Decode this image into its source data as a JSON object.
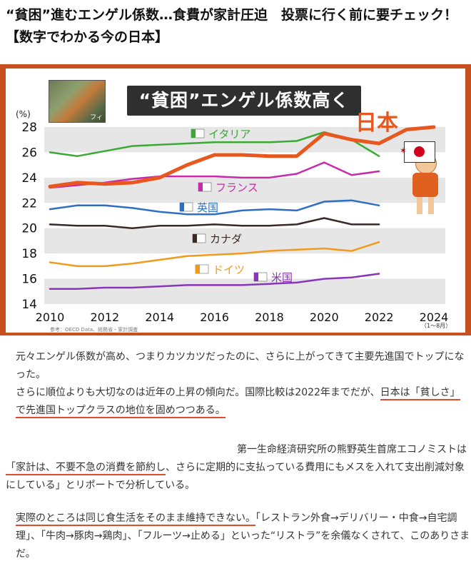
{
  "article_title": "“貧困”進むエンゲル係数…食費が家計圧迫　投票に行く前に要チェック！【数字でわかる今の日本】",
  "chart_banner": "“貧困”エンゲル係数高く",
  "photo_caption": "フィ",
  "mascot_flag_label": "日本",
  "chart_data": {
    "type": "line",
    "title": "“貧困”エンゲル係数高く",
    "ylabel": "(%)",
    "xlabel": "",
    "xlim": [
      2010,
      2024
    ],
    "ylim": [
      14,
      28
    ],
    "x_ticks": [
      "2010",
      "2012",
      "2014",
      "2016",
      "2018",
      "2020",
      "2022",
      "2024"
    ],
    "x_tick_note": "（1～8月）",
    "y_ticks": [
      "14",
      "16",
      "18",
      "20",
      "22",
      "24",
      "26",
      "28"
    ],
    "source": "参考：OECD Data、総務省・家計調査",
    "series": [
      {
        "name": "日本",
        "color": "#e8581e",
        "width": 5,
        "x": [
          2010,
          2011,
          2012,
          2013,
          2014,
          2015,
          2016,
          2017,
          2018,
          2019,
          2020,
          2021,
          2022,
          2023,
          2024
        ],
        "values": [
          23.3,
          23.6,
          23.5,
          23.6,
          24.0,
          25.0,
          25.8,
          25.8,
          25.7,
          25.7,
          27.5,
          27.0,
          26.7,
          27.8,
          28.0
        ]
      },
      {
        "name": "イタリア",
        "color": "#3aaa35",
        "width": 2.5,
        "x": [
          2010,
          2011,
          2012,
          2013,
          2014,
          2015,
          2016,
          2017,
          2018,
          2019,
          2020,
          2021,
          2022
        ],
        "values": [
          26.0,
          25.7,
          26.1,
          26.5,
          26.6,
          26.7,
          26.8,
          26.8,
          26.8,
          26.9,
          27.6,
          27.0,
          25.7
        ]
      },
      {
        "name": "フランス",
        "color": "#c72aa8",
        "width": 2.5,
        "x": [
          2010,
          2011,
          2012,
          2013,
          2014,
          2015,
          2016,
          2017,
          2018,
          2019,
          2020,
          2021,
          2022
        ],
        "values": [
          23.2,
          23.4,
          23.6,
          23.9,
          24.1,
          24.1,
          24.1,
          24.0,
          24.0,
          24.3,
          25.2,
          24.2,
          24.5
        ]
      },
      {
        "name": "英国",
        "color": "#2f6fc3",
        "width": 2.5,
        "x": [
          2010,
          2011,
          2012,
          2013,
          2014,
          2015,
          2016,
          2017,
          2018,
          2019,
          2020,
          2021,
          2022
        ],
        "values": [
          21.5,
          21.8,
          21.8,
          21.6,
          21.3,
          21.1,
          21.1,
          21.4,
          21.5,
          21.4,
          22.1,
          22.2,
          21.8
        ]
      },
      {
        "name": "カナダ",
        "color": "#3a2a25",
        "width": 2.5,
        "x": [
          2010,
          2011,
          2012,
          2013,
          2014,
          2015,
          2016,
          2017,
          2018,
          2019,
          2020,
          2021,
          2022
        ],
        "values": [
          20.3,
          20.2,
          20.2,
          20.0,
          20.2,
          20.2,
          20.3,
          20.2,
          20.2,
          20.3,
          20.8,
          20.3,
          20.3
        ]
      },
      {
        "name": "ドイツ",
        "color": "#f09a1e",
        "width": 2.5,
        "x": [
          2010,
          2011,
          2012,
          2013,
          2014,
          2015,
          2016,
          2017,
          2018,
          2019,
          2020,
          2021,
          2022
        ],
        "values": [
          17.3,
          17.0,
          17.0,
          17.2,
          17.5,
          17.8,
          17.9,
          18.0,
          18.2,
          18.3,
          18.4,
          18.2,
          18.9
        ]
      },
      {
        "name": "米国",
        "color": "#8a35b8",
        "width": 2.5,
        "x": [
          2010,
          2011,
          2012,
          2013,
          2014,
          2015,
          2016,
          2017,
          2018,
          2019,
          2020,
          2021,
          2022
        ],
        "values": [
          15.2,
          15.2,
          15.3,
          15.3,
          15.4,
          15.5,
          15.5,
          15.5,
          15.6,
          15.7,
          16.0,
          16.1,
          16.4
        ]
      }
    ]
  },
  "article": {
    "p1": "元々エンゲル係数が高め、つまりカツカツだったのに、さらに上がってきて主要先進国でトップになった。",
    "p2a": "さらに順位よりも大切なのは近年の上昇の傾向だ。国際比較は2022年までだが、",
    "p2b": "日本は「貧しさ」で先進国トップクラスの地位を固めつつある。",
    "p3a": "第一生命経済研究所の熊野英生首席エコノミストは",
    "p3b": "「家計は、不要不急の消費を節約し",
    "p3c": "、さらに定期的に支払っている費用にもメスを入れて支出削減対象にしている」とリポートで分析している。",
    "p4a": "実際のところは同じ食生活をそのまま維持できない。",
    "p4b": "「レストラン外食→デリバリー・中食→自宅調理」、「牛肉→豚肉→鶏肉」、「フルーツ→止める」といった“リストラ”を余儀なくされて、このありさまだ。"
  }
}
